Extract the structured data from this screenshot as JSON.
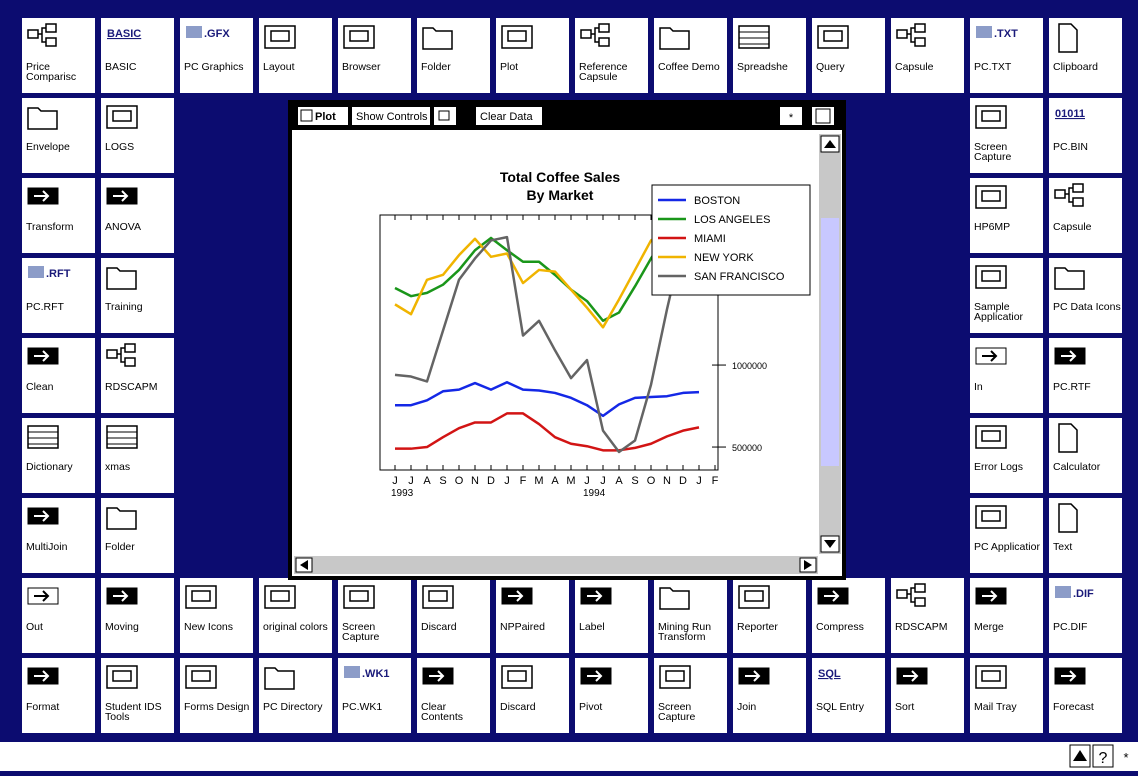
{
  "rows": [
    [
      {
        "label": "Price Comparisc"
      },
      {
        "label": "BASIC",
        "badge": "BASIC"
      },
      {
        "label": "PC Graphics",
        "badge": ".GFX"
      },
      {
        "label": "Layout"
      },
      {
        "label": "Browser"
      },
      {
        "label": "Folder"
      },
      {
        "label": "Plot"
      },
      {
        "label": "Reference Capsule"
      },
      {
        "label": "Coffee Demo"
      },
      {
        "label": "Spreadshe"
      },
      {
        "label": "Query"
      },
      {
        "label": "Capsule"
      },
      {
        "label": "PC.TXT",
        "badge": ".TXT"
      },
      {
        "label": "Clipboard"
      }
    ],
    [
      {
        "label": "Envelope"
      },
      {
        "label": "LOGS"
      },
      {
        "label": "Screen Capture"
      },
      {
        "label": "PC.BIN",
        "badge": "01011"
      }
    ],
    [
      {
        "label": "Transform"
      },
      {
        "label": "ANOVA"
      },
      {
        "label": "HP6MP"
      },
      {
        "label": "Capsule"
      }
    ],
    [
      {
        "label": "PC.RFT",
        "badge": ".RFT"
      },
      {
        "label": "Training"
      },
      {
        "label": "Sample Applicatior"
      },
      {
        "label": "PC Data Icons"
      }
    ],
    [
      {
        "label": "Clean"
      },
      {
        "label": "RDSCAPM"
      },
      {
        "label": "In"
      },
      {
        "label": "PC.RTF",
        "badge": ".RTF"
      }
    ],
    [
      {
        "label": "Dictionary"
      },
      {
        "label": "xmas"
      },
      {
        "label": "Error Logs"
      },
      {
        "label": "Calculator"
      }
    ],
    [
      {
        "label": "MultiJoin"
      },
      {
        "label": "Folder"
      },
      {
        "label": "PC Applicatior"
      },
      {
        "label": "Text"
      }
    ],
    [
      {
        "label": "Out"
      },
      {
        "label": "Moving"
      },
      {
        "label": "New Icons"
      },
      {
        "label": "original colors"
      },
      {
        "label": "Screen Capture"
      },
      {
        "label": "Discard"
      },
      {
        "label": "NPPaired"
      },
      {
        "label": "Label"
      },
      {
        "label": "Mining Run Transform"
      },
      {
        "label": "Reporter"
      },
      {
        "label": "Compress"
      },
      {
        "label": "RDSCAPM"
      },
      {
        "label": "Merge"
      },
      {
        "label": "PC.DIF",
        "badge": ".DIF"
      }
    ],
    [
      {
        "label": "Format"
      },
      {
        "label": "Student IDS Tools"
      },
      {
        "label": "Forms Design"
      },
      {
        "label": "PC Directory"
      },
      {
        "label": "PC.WK1",
        "badge": ".WK1"
      },
      {
        "label": "Clear Contents"
      },
      {
        "label": "Discard"
      },
      {
        "label": "Pivot"
      },
      {
        "label": "Screen Capture"
      },
      {
        "label": "Join"
      },
      {
        "label": "SQL Entry",
        "badge": "SQL"
      },
      {
        "label": "Sort"
      },
      {
        "label": "Mail Tray"
      },
      {
        "label": "Forecast"
      }
    ]
  ],
  "plot_window": {
    "toolbar": {
      "plot": "Plot",
      "show_controls": "Show Controls",
      "clear_data": "Clear Data"
    }
  },
  "chart_data": {
    "type": "line",
    "title": "Total Coffee Sales",
    "subtitle": "By Market",
    "categories": [
      "J",
      "J",
      "A",
      "S",
      "O",
      "N",
      "D",
      "J",
      "F",
      "M",
      "A",
      "M",
      "J",
      "J",
      "A",
      "S",
      "O",
      "N",
      "D",
      "J",
      "F"
    ],
    "category_years": [
      "1993",
      null,
      null,
      null,
      null,
      null,
      null,
      null,
      null,
      null,
      null,
      null,
      "1994",
      null,
      null,
      null,
      null,
      null,
      null,
      null,
      null
    ],
    "series": [
      {
        "name": "BOSTON",
        "color": "#1428e6",
        "values": [
          755000,
          755000,
          785000,
          840000,
          850000,
          890000,
          850000,
          895000,
          850000,
          845000,
          830000,
          800000,
          755000,
          690000,
          760000,
          800000,
          805000,
          810000,
          830000,
          835000,
          null
        ]
      },
      {
        "name": "LOS ANGELES",
        "color": "#1a961a",
        "values": [
          1470000,
          1420000,
          1440000,
          1490000,
          1580000,
          1700000,
          1775000,
          1700000,
          1630000,
          1630000,
          1550000,
          1460000,
          1390000,
          1270000,
          1320000,
          1480000,
          1650000,
          1800000,
          1880000,
          1900000,
          null
        ]
      },
      {
        "name": "MIAMI",
        "color": "#d21414",
        "values": [
          490000,
          490000,
          500000,
          560000,
          615000,
          650000,
          650000,
          705000,
          705000,
          640000,
          560000,
          520000,
          505000,
          480000,
          480000,
          495000,
          520000,
          565000,
          600000,
          620000,
          null
        ]
      },
      {
        "name": "NEW YORK",
        "color": "#f0b400",
        "values": [
          1370000,
          1310000,
          1520000,
          1550000,
          1670000,
          1770000,
          1660000,
          1680000,
          1500000,
          1580000,
          1570000,
          1460000,
          1350000,
          1230000,
          1400000,
          1580000,
          1760000,
          1820000,
          1870000,
          1890000,
          null
        ]
      },
      {
        "name": "SAN FRANCISCO",
        "color": "#646464",
        "values": [
          940000,
          930000,
          900000,
          1210000,
          1520000,
          1650000,
          1760000,
          1780000,
          1180000,
          1270000,
          1090000,
          920000,
          1030000,
          600000,
          470000,
          540000,
          880000,
          1340000,
          1760000,
          1890000,
          null
        ]
      }
    ],
    "ylim": [
      360000,
      1915000
    ],
    "yticks": [
      500000,
      1000000
    ],
    "legend": "upper right"
  },
  "status_bar": {
    "help": "?"
  }
}
